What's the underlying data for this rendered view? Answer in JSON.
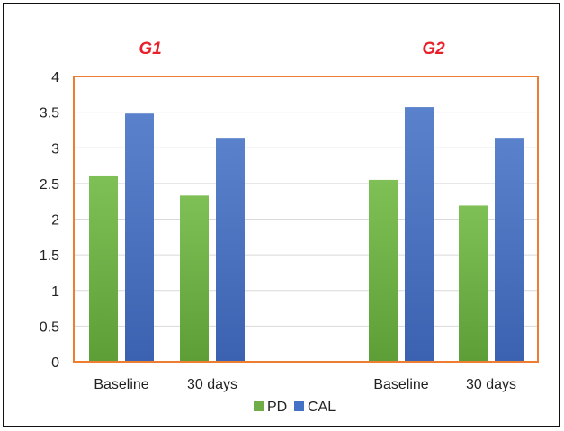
{
  "chart_data": {
    "type": "bar",
    "ylim": [
      0,
      4
    ],
    "yticks": [
      "0",
      "0.5",
      "1",
      "1.5",
      "2",
      "2.5",
      "3",
      "3.5",
      "4"
    ],
    "grid": true,
    "legend_placement": "bottom-center",
    "groups": [
      {
        "label": "G1",
        "categories": [
          "Baseline",
          "30 days"
        ]
      },
      {
        "label": "G2",
        "categories": [
          "Baseline",
          "30 days"
        ]
      }
    ],
    "series": [
      {
        "name": "PD",
        "color": "#70ad47",
        "values": [
          2.6,
          2.33,
          2.55,
          2.19
        ]
      },
      {
        "name": "CAL",
        "color": "#4472c4",
        "values": [
          3.48,
          3.14,
          3.57,
          3.14
        ]
      }
    ],
    "colors": {
      "group_label": "#e8202a",
      "plot_border": "#ed7d31",
      "grid": "#d9d9d9"
    }
  }
}
